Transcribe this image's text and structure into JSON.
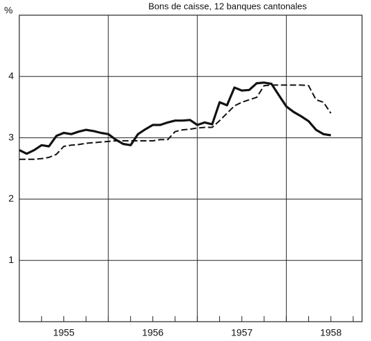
{
  "chart_data": {
    "type": "line",
    "title": "Bons de caisse, 12 banques cantonales",
    "y_label": "%",
    "x": [
      1955,
      1955.083,
      1955.167,
      1955.25,
      1955.333,
      1955.417,
      1955.5,
      1955.583,
      1955.667,
      1955.75,
      1955.833,
      1955.917,
      1956,
      1956.083,
      1956.167,
      1956.25,
      1956.333,
      1956.417,
      1956.5,
      1956.583,
      1956.667,
      1956.75,
      1956.833,
      1956.917,
      1957,
      1957.083,
      1957.167,
      1957.25,
      1957.333,
      1957.417,
      1957.5,
      1957.583,
      1957.667,
      1957.75,
      1957.833,
      1957.917,
      1958,
      1958.083,
      1958.167,
      1958.25,
      1958.333,
      1958.417,
      1958.5
    ],
    "series": [
      {
        "color": "#111111",
        "style": "solid",
        "values": [
          2.8,
          2.74,
          2.8,
          2.88,
          2.86,
          3.03,
          3.08,
          3.06,
          3.1,
          3.13,
          3.11,
          3.08,
          3.06,
          2.97,
          2.9,
          2.88,
          3.06,
          3.14,
          3.21,
          3.21,
          3.25,
          3.28,
          3.28,
          3.29,
          3.21,
          3.25,
          3.22,
          3.58,
          3.53,
          3.82,
          3.77,
          3.78,
          3.89,
          3.9,
          3.88,
          3.69,
          3.51,
          3.42,
          3.35,
          3.27,
          3.13,
          3.06,
          3.04
        ]
      },
      {
        "color": "#111111",
        "style": "dashed",
        "values": [
          2.65,
          2.65,
          2.65,
          2.66,
          2.68,
          2.73,
          2.86,
          2.88,
          2.89,
          2.91,
          2.92,
          2.93,
          2.94,
          2.95,
          2.95,
          2.95,
          2.95,
          2.95,
          2.95,
          2.97,
          2.97,
          3.1,
          3.13,
          3.14,
          3.16,
          3.17,
          3.17,
          3.28,
          3.4,
          3.52,
          3.58,
          3.62,
          3.66,
          3.85,
          3.86,
          3.86,
          3.86,
          3.86,
          3.86,
          3.85,
          3.62,
          3.58,
          3.4
        ]
      }
    ],
    "xlim": [
      1955,
      1958.85
    ],
    "xticks": [
      {
        "value": 1955.5,
        "label": "1955"
      },
      {
        "value": 1956.5,
        "label": "1956"
      },
      {
        "value": 1957.5,
        "label": "1957"
      },
      {
        "value": 1958.5,
        "label": "1958"
      }
    ],
    "xgrid": [
      1956,
      1957,
      1958
    ],
    "ylim": [
      0,
      5
    ],
    "yticks": [
      1,
      2,
      3,
      4
    ],
    "grid": true
  }
}
